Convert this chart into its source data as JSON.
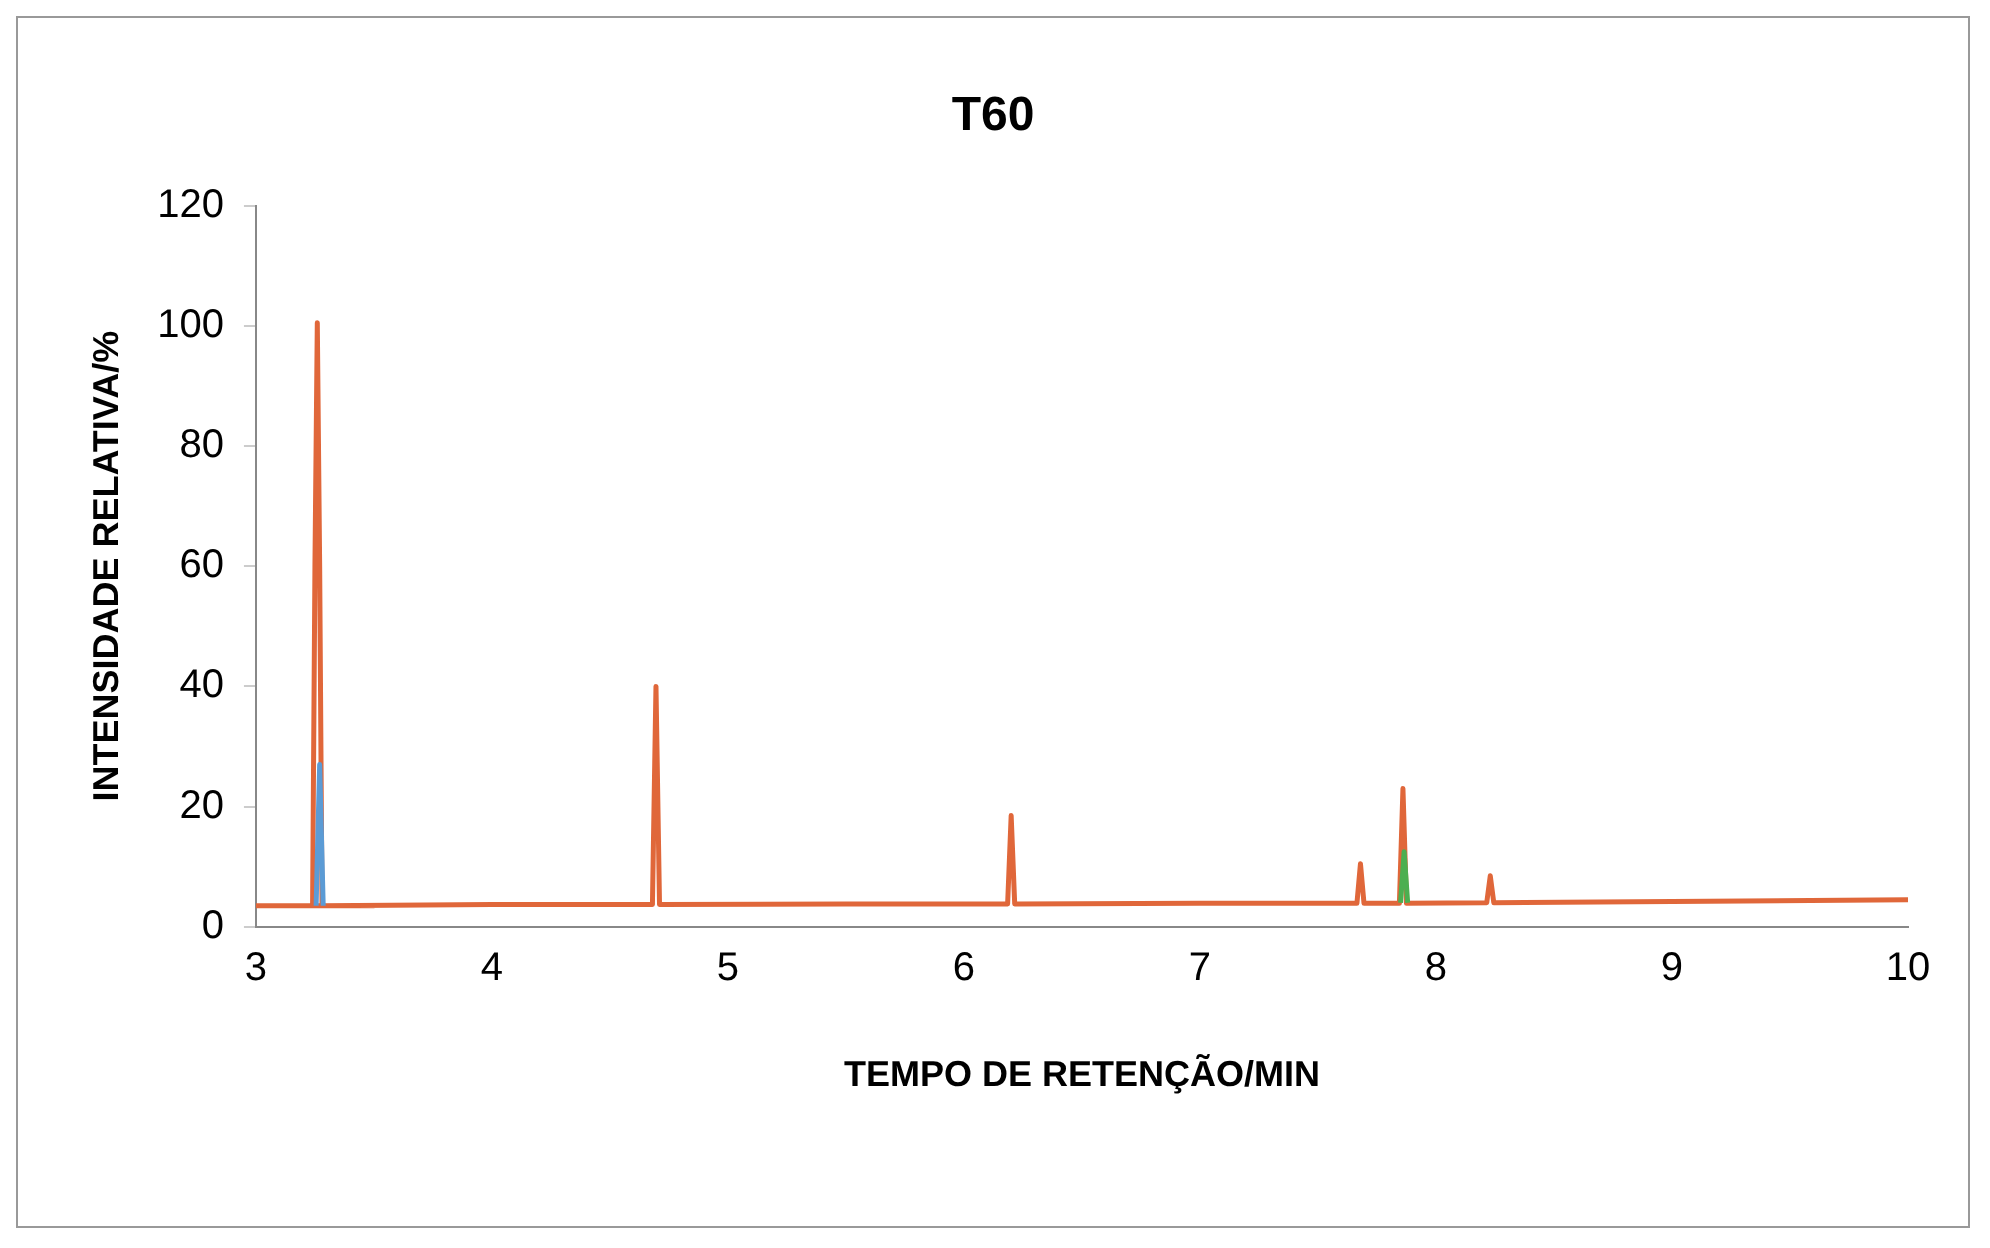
{
  "chart_data": {
    "type": "line",
    "title": "T60",
    "xlabel": "TEMPO DE RETENÇÃO/MIN",
    "ylabel": "INTENSIDADE RELATIVA/%",
    "xlim": [
      3,
      10
    ],
    "xticks": [
      3,
      4,
      5,
      6,
      7,
      8,
      9,
      10
    ],
    "ylim": [
      0,
      120
    ],
    "yticks": [
      0,
      20,
      40,
      60,
      80,
      100,
      120
    ],
    "grid": false,
    "legend": false,
    "marker": "none",
    "line_style": "solid",
    "series": [
      {
        "color": "#5b9bd5",
        "x": [
          3.255,
          3.27,
          3.285
        ],
        "values": [
          3.5,
          27,
          3.5
        ]
      },
      {
        "color": "#4caf50",
        "x": [
          7.85,
          7.865,
          7.88
        ],
        "values": [
          4,
          12.5,
          4
        ]
      },
      {
        "color": "#e0673a",
        "x": [
          3,
          3.5,
          3.24,
          3.25,
          3.26,
          3.27,
          3.28,
          4,
          4.68,
          4.695,
          4.71,
          5.5,
          6.185,
          6.2,
          6.215,
          7,
          7.665,
          7.68,
          7.695,
          7.845,
          7.86,
          7.875,
          8.215,
          8.23,
          8.245,
          9,
          10
        ],
        "values": [
          3.5,
          3.5,
          3.5,
          60,
          100.5,
          60,
          3.5,
          3.7,
          3.7,
          40,
          3.7,
          3.8,
          3.8,
          18.5,
          3.8,
          3.9,
          3.9,
          10.5,
          3.9,
          3.9,
          23,
          3.9,
          4,
          8.5,
          4,
          4.2,
          4.5
        ]
      }
    ]
  }
}
